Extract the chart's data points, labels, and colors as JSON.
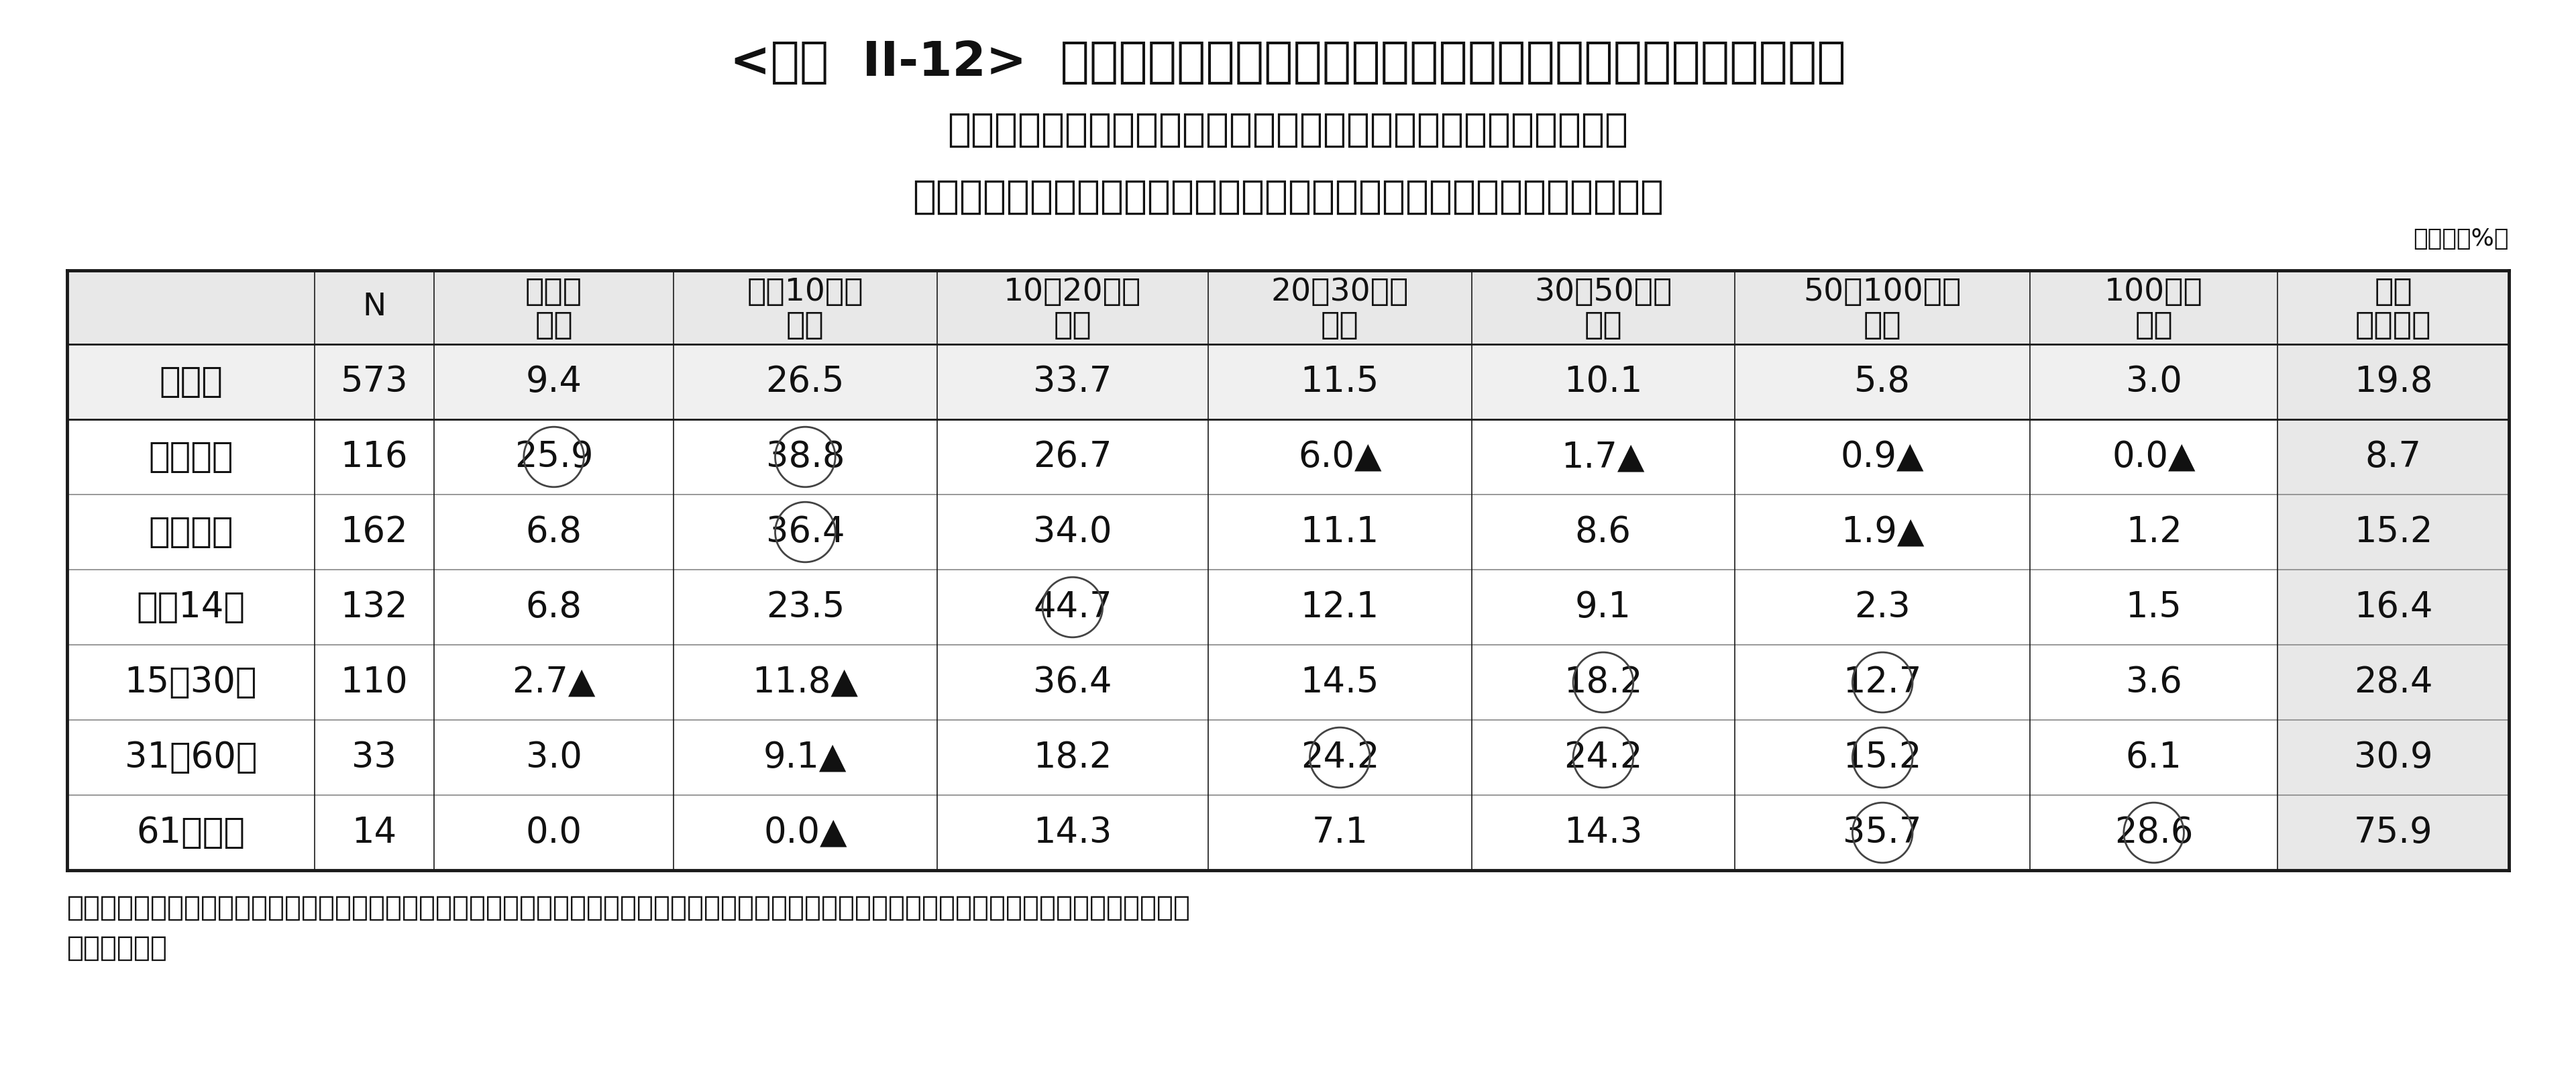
{
  "title_line1": "<図表  II-12>  直近の入院時の自己負担費用［直近の入院時の入院日数別］",
  "title_line2": "［集計ベース：過去５年間に入院し、自己負担費用を支払った人",
  "title_line3": "（高額療養費制度を利用した人＋利用しなかった人（適用外含む））］",
  "unit_label": "（単位：%）",
  "col_headers_line1": [
    "",
    "N",
    "５万円",
    "５～10万円",
    "10～20万円",
    "20～30万円",
    "30～50万円",
    "50～100万円",
    "100万円",
    "平均"
  ],
  "col_headers_line2": [
    "",
    "",
    "未満",
    "未満",
    "未満",
    "未満",
    "未満",
    "未満",
    "以上",
    "（万円）"
  ],
  "rows": [
    {
      "label": "全　体",
      "n": "573",
      "vals": [
        "9.4",
        "26.5",
        "33.7",
        "11.5",
        "10.1",
        "5.8",
        "3.0"
      ],
      "avg": "19.8",
      "circle": [],
      "triangle": []
    },
    {
      "label": "５日未満",
      "n": "116",
      "vals": [
        "25.9",
        "38.8",
        "26.7",
        "6.0",
        "1.7",
        "0.9",
        "0.0"
      ],
      "avg": "8.7",
      "circle": [
        0,
        1
      ],
      "triangle": [
        3,
        4,
        5,
        6
      ]
    },
    {
      "label": "５～７日",
      "n": "162",
      "vals": [
        "6.8",
        "36.4",
        "34.0",
        "11.1",
        "8.6",
        "1.9",
        "1.2"
      ],
      "avg": "15.2",
      "circle": [
        1
      ],
      "triangle": [
        5
      ]
    },
    {
      "label": "８～14日",
      "n": "132",
      "vals": [
        "6.8",
        "23.5",
        "44.7",
        "12.1",
        "9.1",
        "2.3",
        "1.5"
      ],
      "avg": "16.4",
      "circle": [
        2
      ],
      "triangle": []
    },
    {
      "label": "15～30日",
      "n": "110",
      "vals": [
        "2.7",
        "11.8",
        "36.4",
        "14.5",
        "18.2",
        "12.7",
        "3.6"
      ],
      "avg": "28.4",
      "circle": [
        4,
        5
      ],
      "triangle": [
        0,
        1
      ]
    },
    {
      "label": "31～60日",
      "n": "33",
      "vals": [
        "3.0",
        "9.1",
        "18.2",
        "24.2",
        "24.2",
        "15.2",
        "6.1"
      ],
      "avg": "30.9",
      "circle": [
        3,
        4,
        5
      ],
      "triangle": [
        1
      ]
    },
    {
      "label": "61日以上",
      "n": "14",
      "vals": [
        "0.0",
        "0.0",
        "14.3",
        "7.1",
        "14.3",
        "35.7",
        "28.6"
      ],
      "avg": "75.9",
      "circle": [
        5,
        6
      ],
      "triangle": [
        1
      ]
    }
  ],
  "footnote_line1": "＊治療費・食事代・差額ベッド代に加え、交通費（見舞いに来る家族の交通費も含む）や衣類、日用品などを含む。高額療養費制度を利用した場合は",
  "footnote_line2": "利用後の金額",
  "bg_color": "#ffffff",
  "header_bg": "#e8e8e8",
  "zentai_bg": "#f0f0f0",
  "last_col_bg": "#e8e8e8",
  "border_dark": "#1a1a1a",
  "border_light": "#888888",
  "text_color": "#111111"
}
